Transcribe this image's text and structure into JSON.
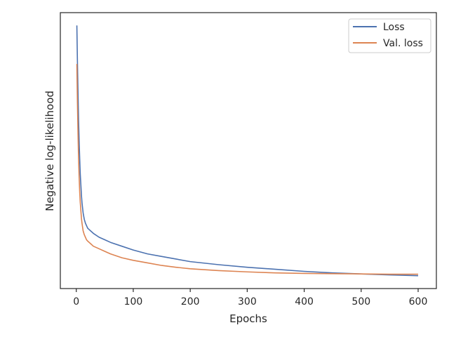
{
  "chart_data": {
    "type": "line",
    "title": "",
    "xlabel": "Epochs",
    "ylabel": "Negative log-likelihood",
    "xlim": [
      -28,
      632
    ],
    "xticks": [
      0,
      100,
      200,
      300,
      400,
      500,
      600
    ],
    "y_tick_labels_shown": false,
    "grid": false,
    "legend_position": "top-right",
    "colors": {
      "loss": "#4c72b0",
      "val_loss": "#dd8452",
      "axes": "#262626"
    },
    "series": [
      {
        "name": "Loss",
        "key": "loss",
        "x": [
          1,
          2,
          3,
          4,
          5,
          6,
          7,
          8,
          9,
          10,
          12,
          14,
          16,
          18,
          20,
          25,
          30,
          40,
          50,
          60,
          80,
          100,
          125,
          150,
          175,
          200,
          250,
          300,
          350,
          400,
          450,
          500,
          550,
          600
        ],
        "y": [
          1.0,
          0.86,
          0.74,
          0.63,
          0.55,
          0.48,
          0.42,
          0.38,
          0.34,
          0.31,
          0.27,
          0.245,
          0.23,
          0.22,
          0.21,
          0.2,
          0.19,
          0.175,
          0.165,
          0.155,
          0.14,
          0.125,
          0.11,
          0.1,
          0.09,
          0.08,
          0.068,
          0.058,
          0.05,
          0.042,
          0.036,
          0.032,
          0.028,
          0.025
        ]
      },
      {
        "name": "Val. loss",
        "key": "val_loss",
        "x": [
          1,
          2,
          3,
          4,
          5,
          6,
          7,
          8,
          9,
          10,
          12,
          14,
          16,
          18,
          20,
          25,
          30,
          40,
          50,
          60,
          80,
          100,
          125,
          150,
          175,
          200,
          250,
          300,
          350,
          400,
          450,
          500,
          550,
          600
        ],
        "y": [
          0.85,
          0.7,
          0.58,
          0.48,
          0.41,
          0.35,
          0.31,
          0.28,
          0.25,
          0.23,
          0.2,
          0.185,
          0.175,
          0.165,
          0.16,
          0.15,
          0.14,
          0.13,
          0.12,
          0.11,
          0.095,
          0.085,
          0.075,
          0.065,
          0.058,
          0.052,
          0.045,
          0.04,
          0.036,
          0.034,
          0.033,
          0.032,
          0.031,
          0.031
        ]
      }
    ]
  }
}
